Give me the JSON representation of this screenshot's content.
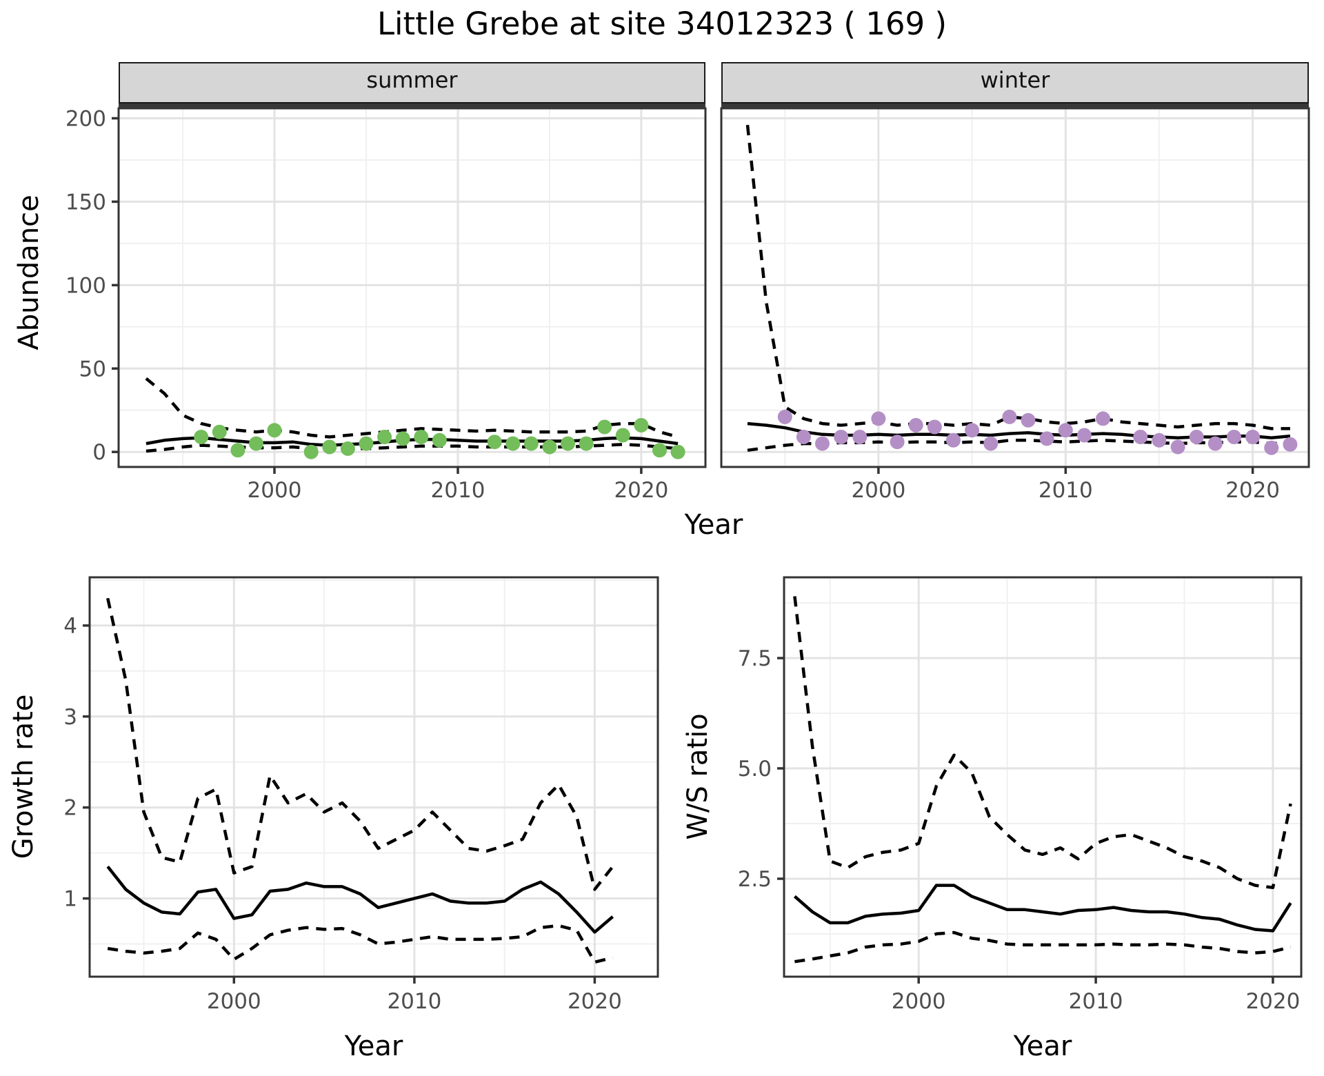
{
  "title": "Little Grebe at site 34012323 ( 169 )",
  "colors": {
    "summer_point": "#73bd5b",
    "winter_point": "#b48fc6",
    "line": "#000000",
    "grid_major": "#e3e3e3",
    "grid_minor": "#f0f0f0",
    "panel_border": "#333333",
    "tick": "#333333",
    "tick_label": "#4d4d4d",
    "strip_bg": "#d6d6d6",
    "strip_band": "#383838"
  },
  "chart_data": [
    {
      "id": "abundance_summer",
      "type": "line",
      "facet_label": "summer",
      "xlabel": "Year",
      "ylabel": "Abundance",
      "xlim": [
        1991.5,
        2023.5
      ],
      "ylim": [
        -9,
        206
      ],
      "grid": true,
      "legend": "none",
      "x_tick_values": [
        2000,
        2010,
        2020
      ],
      "x_tick_labels": [
        "2000",
        "2010",
        "2020"
      ],
      "x_minor": [
        1995,
        2005,
        2015
      ],
      "y_tick_values": [
        0,
        50,
        100,
        150,
        200
      ],
      "y_tick_labels": [
        "0",
        "50",
        "100",
        "150",
        "200"
      ],
      "y_minor": [
        25,
        75,
        125,
        175
      ],
      "point_color": "#73bd5b",
      "series": [
        {
          "name": "ci-lower",
          "style": "dashed",
          "x": [
            1993,
            1994,
            1995,
            1996,
            1997,
            1998,
            1999,
            2000,
            2001,
            2002,
            2003,
            2004,
            2005,
            2006,
            2007,
            2008,
            2009,
            2010,
            2011,
            2012,
            2013,
            2014,
            2015,
            2016,
            2017,
            2018,
            2019,
            2020,
            2021,
            2022
          ],
          "y": [
            0.5,
            1.5,
            3,
            4,
            3.5,
            3,
            2.5,
            2.5,
            3,
            2,
            1.5,
            2,
            2,
            2.5,
            3,
            3.5,
            3.5,
            3.5,
            3,
            3,
            3,
            3,
            3,
            3,
            3.5,
            4,
            4.5,
            4,
            3,
            2
          ]
        },
        {
          "name": "ci-upper",
          "style": "dashed",
          "x": [
            1993,
            1994,
            1995,
            1996,
            1997,
            1998,
            1999,
            2000,
            2001,
            2002,
            2003,
            2004,
            2005,
            2006,
            2007,
            2008,
            2009,
            2010,
            2011,
            2012,
            2013,
            2014,
            2015,
            2016,
            2017,
            2018,
            2019,
            2020,
            2021,
            2022
          ],
          "y": [
            44,
            35,
            22,
            17,
            14.5,
            13,
            12,
            13,
            12,
            10,
            9,
            10,
            11,
            12,
            13,
            14,
            13.5,
            13,
            12.5,
            13,
            12.5,
            12,
            12,
            12,
            12.5,
            16,
            17,
            17,
            12,
            9
          ]
        },
        {
          "name": "fit",
          "style": "solid",
          "x": [
            1993,
            1994,
            1995,
            1996,
            1997,
            1998,
            1999,
            2000,
            2001,
            2002,
            2003,
            2004,
            2005,
            2006,
            2007,
            2008,
            2009,
            2010,
            2011,
            2012,
            2013,
            2014,
            2015,
            2016,
            2017,
            2018,
            2019,
            2020,
            2021,
            2022
          ],
          "y": [
            5,
            7,
            8,
            8.5,
            7.5,
            6.5,
            5.5,
            5.5,
            6,
            4.5,
            4,
            4.5,
            5,
            6,
            7,
            7.5,
            7.5,
            7,
            6.5,
            6.5,
            6.5,
            6.5,
            6.5,
            6.5,
            7,
            8,
            8.5,
            8,
            6.5,
            5
          ]
        }
      ],
      "points": {
        "x": [
          1996,
          1997,
          1998,
          1999,
          2000,
          2002,
          2003,
          2004,
          2005,
          2006,
          2007,
          2008,
          2009,
          2012,
          2013,
          2014,
          2015,
          2016,
          2017,
          2018,
          2019,
          2020,
          2021,
          2022
        ],
        "y": [
          9,
          12,
          1,
          5,
          13,
          0,
          3,
          2,
          5,
          9,
          8,
          9,
          7,
          6,
          5,
          5,
          3,
          5,
          5,
          15,
          10,
          16,
          1,
          0
        ]
      }
    },
    {
      "id": "abundance_winter",
      "type": "line",
      "facet_label": "winter",
      "xlabel": "Year",
      "ylabel": "",
      "xlim": [
        1991.6,
        2023.0
      ],
      "ylim": [
        -9,
        206
      ],
      "grid": true,
      "legend": "none",
      "x_tick_values": [
        2000,
        2010,
        2020
      ],
      "x_tick_labels": [
        "2000",
        "2010",
        "2020"
      ],
      "x_minor": [
        1995,
        2005,
        2015
      ],
      "y_tick_values": [
        0,
        50,
        100,
        150,
        200
      ],
      "y_tick_labels": [],
      "y_minor": [
        25,
        75,
        125,
        175
      ],
      "point_color": "#b48fc6",
      "series": [
        {
          "name": "ci-lower",
          "style": "dashed",
          "x": [
            1993,
            1994,
            1995,
            1996,
            1997,
            1998,
            1999,
            2000,
            2001,
            2002,
            2003,
            2004,
            2005,
            2006,
            2007,
            2008,
            2009,
            2010,
            2011,
            2012,
            2013,
            2014,
            2015,
            2016,
            2017,
            2018,
            2019,
            2020,
            2021,
            2022
          ],
          "y": [
            1,
            2.5,
            4,
            5,
            5,
            5.5,
            5.5,
            6,
            5.5,
            6,
            6,
            5.5,
            6,
            5.5,
            7,
            7,
            6.5,
            6,
            6.5,
            7,
            6.5,
            6,
            5.5,
            5,
            5.5,
            5.5,
            6,
            6,
            5,
            5.5
          ]
        },
        {
          "name": "ci-upper",
          "style": "dashed",
          "x": [
            1993,
            1994,
            1995,
            1996,
            1997,
            1998,
            1999,
            2000,
            2001,
            2002,
            2003,
            2004,
            2005,
            2006,
            2007,
            2008,
            2009,
            2010,
            2011,
            2012,
            2013,
            2014,
            2015,
            2016,
            2017,
            2018,
            2019,
            2020,
            2021,
            2022
          ],
          "y": [
            196,
            90,
            27,
            20,
            17,
            16,
            17,
            18,
            16,
            17,
            17,
            16,
            17,
            16,
            21,
            20,
            18,
            17,
            18,
            20,
            18,
            17,
            16,
            15,
            16,
            17,
            17,
            16,
            14,
            14
          ]
        },
        {
          "name": "fit",
          "style": "solid",
          "x": [
            1993,
            1994,
            1995,
            1996,
            1997,
            1998,
            1999,
            2000,
            2001,
            2002,
            2003,
            2004,
            2005,
            2006,
            2007,
            2008,
            2009,
            2010,
            2011,
            2012,
            2013,
            2014,
            2015,
            2016,
            2017,
            2018,
            2019,
            2020,
            2021,
            2022
          ],
          "y": [
            17,
            16,
            14.5,
            12,
            10.5,
            10,
            10,
            10.5,
            10,
            10.5,
            10.5,
            10,
            10.5,
            10,
            11,
            11.5,
            10.5,
            10,
            10.5,
            11,
            10.5,
            9.5,
            9,
            8.5,
            9,
            9,
            9.5,
            9.5,
            8.5,
            9.5
          ]
        }
      ],
      "points": {
        "x": [
          1995,
          1996,
          1997,
          1998,
          1999,
          2000,
          2001,
          2002,
          2003,
          2004,
          2005,
          2006,
          2007,
          2008,
          2009,
          2010,
          2011,
          2012,
          2014,
          2015,
          2016,
          2017,
          2018,
          2019,
          2020,
          2021,
          2022
        ],
        "y": [
          21,
          9,
          5,
          9,
          9,
          20,
          6,
          16,
          15,
          7,
          13,
          5,
          21,
          19,
          8,
          13,
          10,
          20,
          9,
          7,
          3,
          9,
          5,
          9,
          9,
          2.5,
          4.5
        ]
      }
    },
    {
      "id": "growth",
      "type": "line",
      "facet_label": null,
      "xlabel": "Year",
      "ylabel": "Growth rate",
      "xlim": [
        1992.0,
        2023.5
      ],
      "ylim": [
        0.14,
        4.53
      ],
      "grid": true,
      "legend": "none",
      "x_tick_values": [
        2000,
        2010,
        2020
      ],
      "x_tick_labels": [
        "2000",
        "2010",
        "2020"
      ],
      "x_minor": [
        1995,
        2005,
        2015
      ],
      "y_tick_values": [
        1,
        2,
        3,
        4
      ],
      "y_tick_labels": [
        "1",
        "2",
        "3",
        "4"
      ],
      "y_minor": [
        0.5,
        1.5,
        2.5,
        3.5,
        4.5
      ],
      "series": [
        {
          "name": "ci-lower",
          "style": "dashed",
          "x": [
            1993,
            1994,
            1995,
            1996,
            1997,
            1998,
            1999,
            2000,
            2001,
            2002,
            2003,
            2004,
            2005,
            2006,
            2007,
            2008,
            2009,
            2010,
            2011,
            2012,
            2013,
            2014,
            2015,
            2016,
            2017,
            2018,
            2019,
            2020,
            2021
          ],
          "y": [
            0.45,
            0.42,
            0.4,
            0.42,
            0.45,
            0.62,
            0.55,
            0.33,
            0.45,
            0.6,
            0.65,
            0.68,
            0.66,
            0.67,
            0.6,
            0.5,
            0.52,
            0.55,
            0.58,
            0.55,
            0.55,
            0.55,
            0.56,
            0.58,
            0.68,
            0.7,
            0.65,
            0.3,
            0.35
          ]
        },
        {
          "name": "ci-upper",
          "style": "dashed",
          "x": [
            1993,
            1994,
            1995,
            1996,
            1997,
            1998,
            1999,
            2000,
            2001,
            2002,
            2003,
            2004,
            2005,
            2006,
            2007,
            2008,
            2009,
            2010,
            2011,
            2012,
            2013,
            2014,
            2015,
            2016,
            2017,
            2018,
            2019,
            2020,
            2021
          ],
          "y": [
            4.3,
            3.4,
            1.95,
            1.45,
            1.4,
            2.1,
            2.2,
            1.28,
            1.35,
            2.35,
            2.05,
            2.15,
            1.95,
            2.05,
            1.85,
            1.55,
            1.65,
            1.75,
            1.95,
            1.75,
            1.55,
            1.52,
            1.58,
            1.65,
            2.05,
            2.25,
            1.9,
            1.1,
            1.35
          ]
        },
        {
          "name": "fit",
          "style": "solid",
          "x": [
            1993,
            1994,
            1995,
            1996,
            1997,
            1998,
            1999,
            2000,
            2001,
            2002,
            2003,
            2004,
            2005,
            2006,
            2007,
            2008,
            2009,
            2010,
            2011,
            2012,
            2013,
            2014,
            2015,
            2016,
            2017,
            2018,
            2019,
            2020,
            2021
          ],
          "y": [
            1.35,
            1.1,
            0.95,
            0.85,
            0.83,
            1.07,
            1.1,
            0.78,
            0.82,
            1.08,
            1.1,
            1.17,
            1.13,
            1.13,
            1.05,
            0.9,
            0.95,
            1.0,
            1.05,
            0.97,
            0.95,
            0.95,
            0.97,
            1.1,
            1.18,
            1.05,
            0.85,
            0.63,
            0.8
          ]
        }
      ]
    },
    {
      "id": "ws",
      "type": "line",
      "facet_label": null,
      "xlabel": "Year",
      "ylabel": "W/S ratio",
      "xlim": [
        1992.4,
        2021.6
      ],
      "ylim": [
        0.28,
        9.33
      ],
      "grid": true,
      "legend": "none",
      "x_tick_values": [
        2000,
        2010,
        2020
      ],
      "x_tick_labels": [
        "2000",
        "2010",
        "2020"
      ],
      "x_minor": [
        1995,
        2005,
        2015
      ],
      "y_tick_values": [
        2.5,
        5.0,
        7.5
      ],
      "y_tick_labels": [
        "2.5",
        "5.0",
        "7.5"
      ],
      "y_minor": [
        1.25,
        3.75,
        6.25,
        8.75
      ],
      "series": [
        {
          "name": "ci-lower",
          "style": "dashed",
          "x": [
            1993,
            1994,
            1995,
            1996,
            1997,
            1998,
            1999,
            2000,
            2001,
            2002,
            2003,
            2004,
            2005,
            2006,
            2007,
            2008,
            2009,
            2010,
            2011,
            2012,
            2013,
            2014,
            2015,
            2016,
            2017,
            2018,
            2019,
            2020,
            2021
          ],
          "y": [
            0.62,
            0.68,
            0.75,
            0.82,
            0.95,
            1.0,
            1.02,
            1.08,
            1.25,
            1.28,
            1.15,
            1.1,
            1.02,
            1.0,
            1.0,
            1.0,
            1.0,
            1.0,
            1.02,
            1.0,
            1.0,
            1.02,
            1.0,
            0.95,
            0.92,
            0.85,
            0.82,
            0.85,
            0.95
          ]
        },
        {
          "name": "ci-upper",
          "style": "dashed",
          "x": [
            1993,
            1994,
            1995,
            1996,
            1997,
            1998,
            1999,
            2000,
            2001,
            2002,
            2003,
            2004,
            2005,
            2006,
            2007,
            2008,
            2009,
            2010,
            2011,
            2012,
            2013,
            2014,
            2015,
            2016,
            2017,
            2018,
            2019,
            2020,
            2021
          ],
          "y": [
            8.9,
            5.5,
            2.9,
            2.75,
            3.0,
            3.1,
            3.15,
            3.3,
            4.6,
            5.3,
            4.9,
            3.9,
            3.5,
            3.15,
            3.05,
            3.2,
            2.95,
            3.3,
            3.45,
            3.5,
            3.35,
            3.2,
            3.0,
            2.9,
            2.75,
            2.5,
            2.35,
            2.3,
            4.2
          ]
        },
        {
          "name": "fit",
          "style": "solid",
          "x": [
            1993,
            1994,
            1995,
            1996,
            1997,
            1998,
            1999,
            2000,
            2001,
            2002,
            2003,
            2004,
            2005,
            2006,
            2007,
            2008,
            2009,
            2010,
            2011,
            2012,
            2013,
            2014,
            2015,
            2016,
            2017,
            2018,
            2019,
            2020,
            2021
          ],
          "y": [
            2.1,
            1.75,
            1.5,
            1.5,
            1.65,
            1.7,
            1.72,
            1.78,
            2.35,
            2.35,
            2.1,
            1.95,
            1.8,
            1.8,
            1.75,
            1.7,
            1.78,
            1.8,
            1.85,
            1.78,
            1.75,
            1.75,
            1.7,
            1.62,
            1.58,
            1.45,
            1.35,
            1.32,
            1.95
          ]
        }
      ]
    }
  ]
}
